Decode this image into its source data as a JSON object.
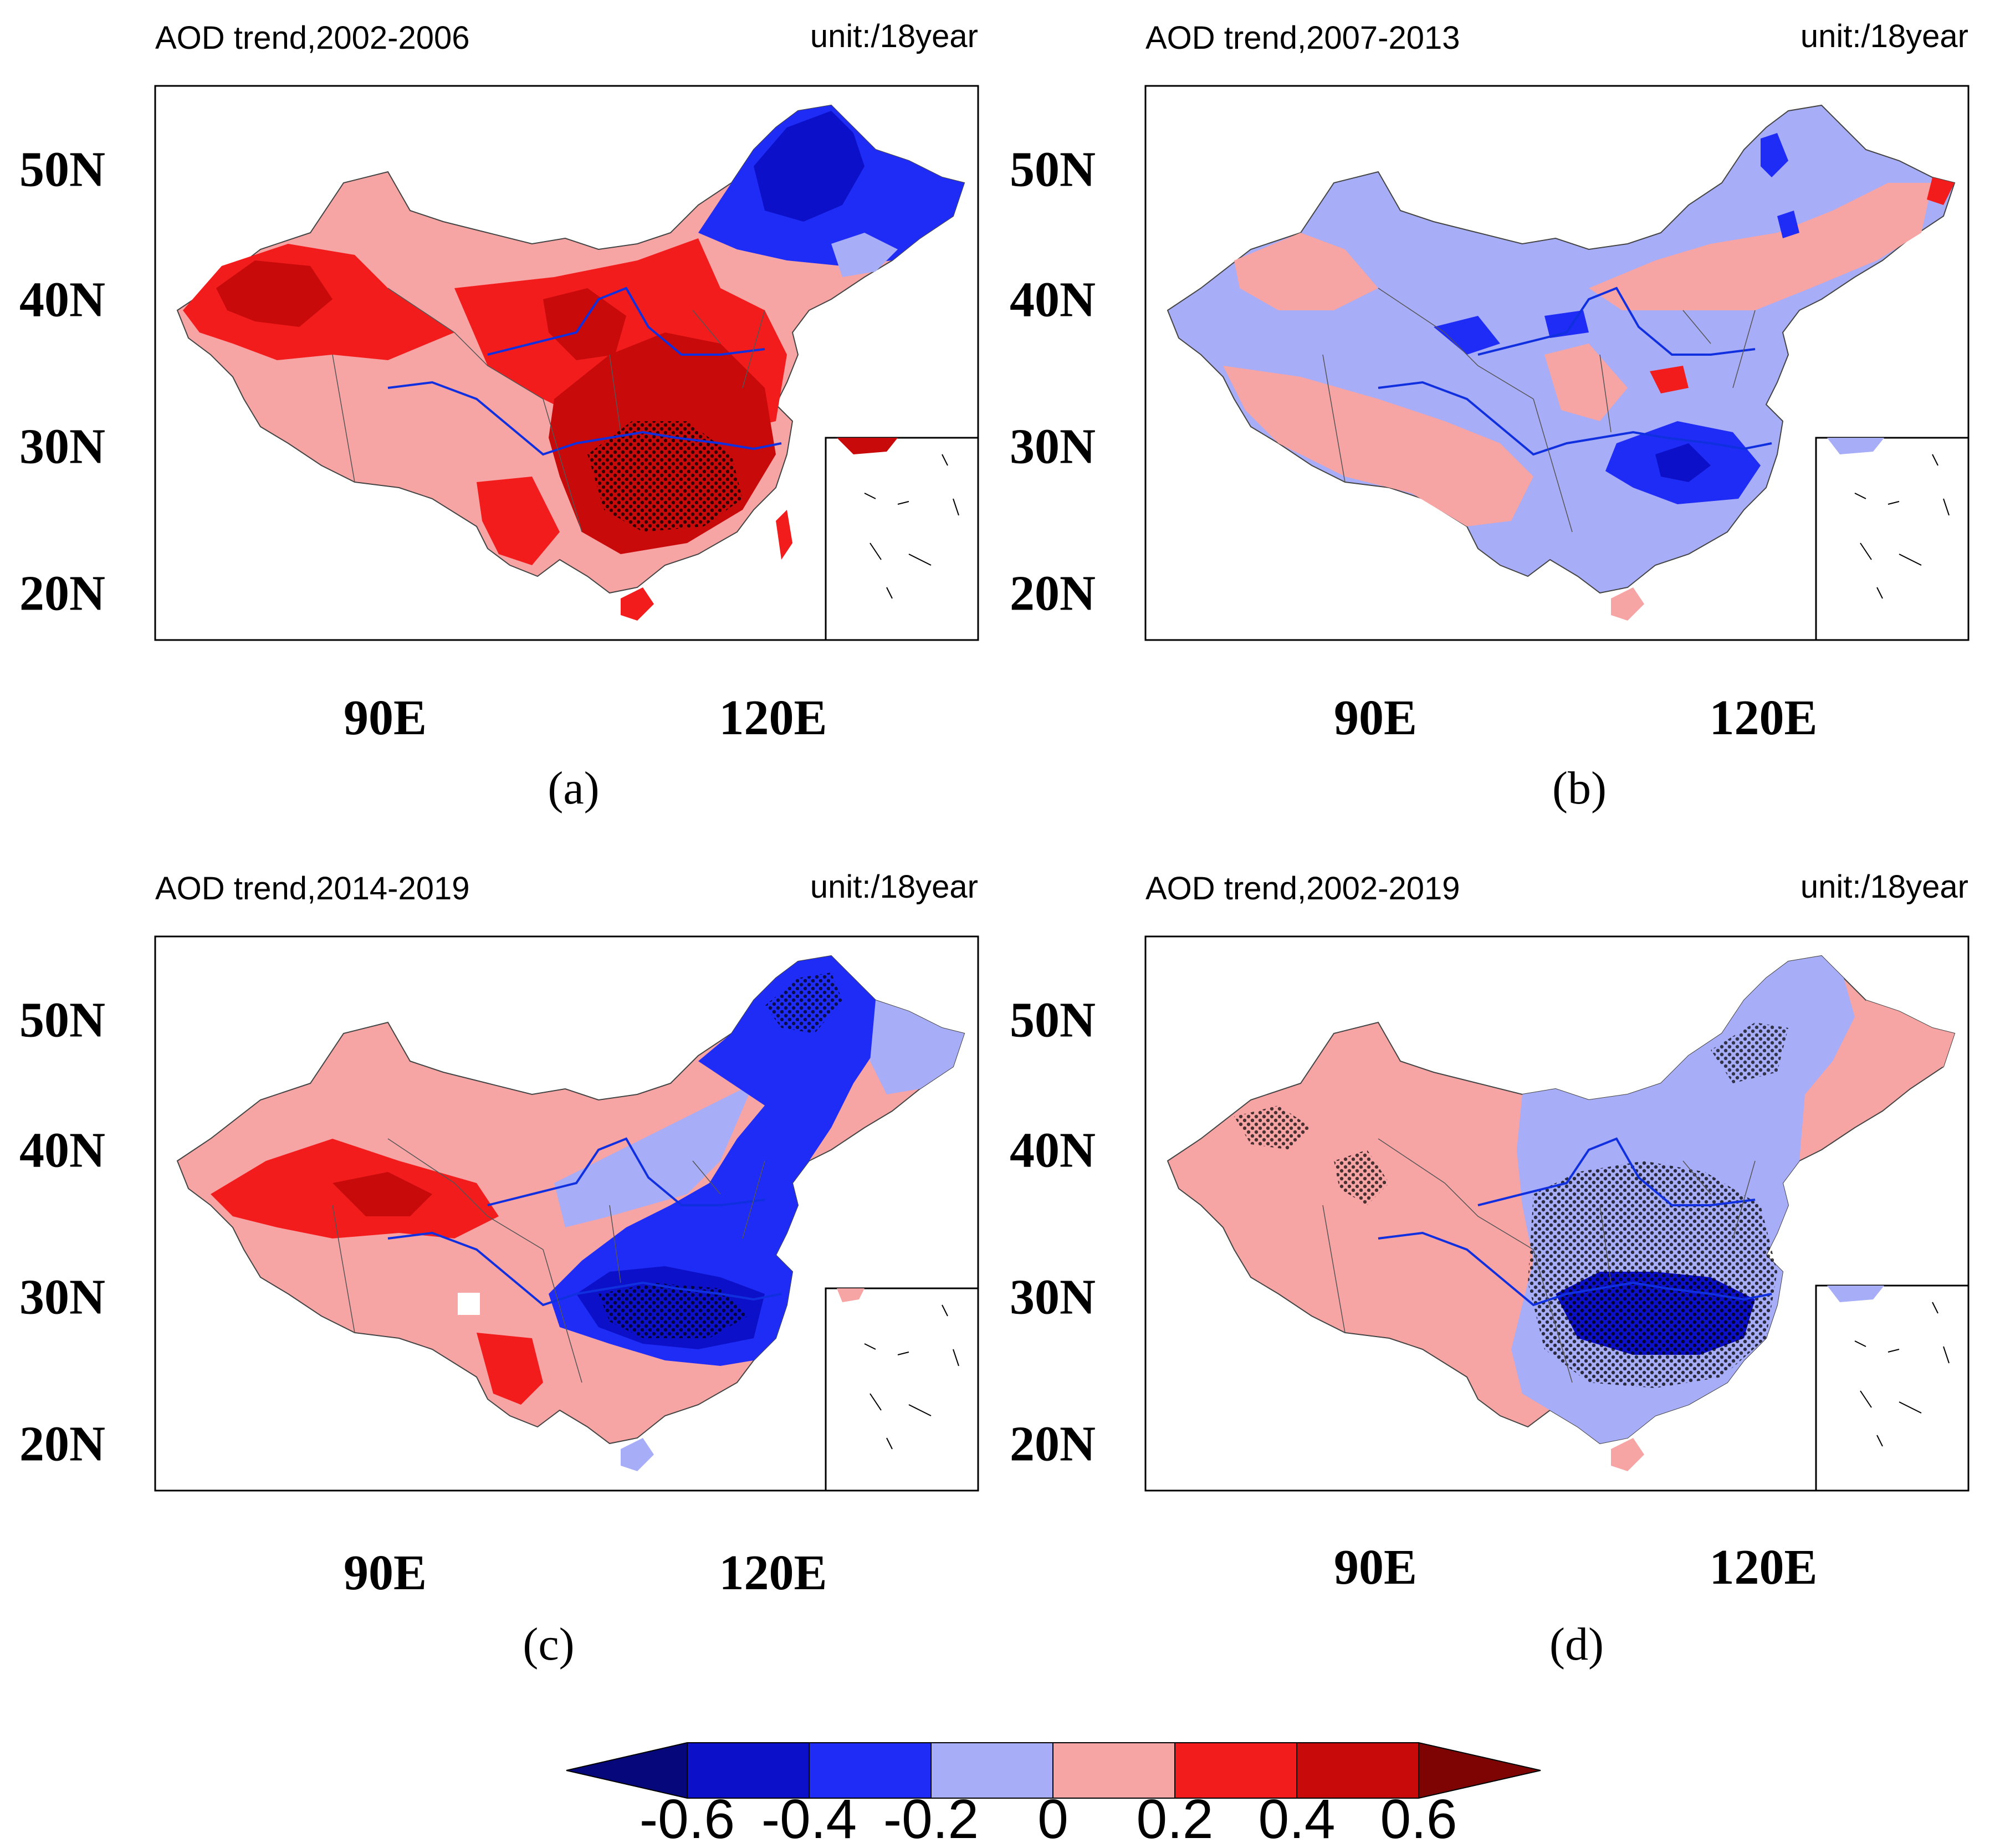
{
  "panels": [
    {
      "id": "a",
      "title": "AOD trend,2002-2006",
      "unit": "unit:/18year",
      "label": "(a)"
    },
    {
      "id": "b",
      "title": "AOD trend,2007-2013",
      "unit": "unit:/18year",
      "label": "(b)"
    },
    {
      "id": "c",
      "title": "AOD trend,2014-2019",
      "unit": "unit:/18year",
      "label": "(c)"
    },
    {
      "id": "d",
      "title": "AOD trend,2002-2019",
      "unit": "unit:/18year",
      "label": "(d)"
    }
  ],
  "axes": {
    "lat_ticks": [
      "50N",
      "40N",
      "30N",
      "20N"
    ],
    "lon_ticks": [
      "90E",
      "120E"
    ]
  },
  "colorbar": {
    "labels": [
      "-0.6",
      "-0.4",
      "-0.2",
      "0",
      "0.2",
      "0.4",
      "0.6"
    ],
    "colors": [
      "#05077a",
      "#0c10c8",
      "#1f2cf5",
      "#a7adf7",
      "#f7a4a4",
      "#f31c1c",
      "#c80a0a",
      "#7e0404"
    ]
  },
  "map_colors": {
    "dark_blue": "#0c10c8",
    "blue": "#1f2cf5",
    "light_blue": "#a7adf7",
    "light_red": "#f7a4a4",
    "red": "#f31c1c",
    "dark_red": "#c80a0a",
    "river": "#1030e0"
  }
}
